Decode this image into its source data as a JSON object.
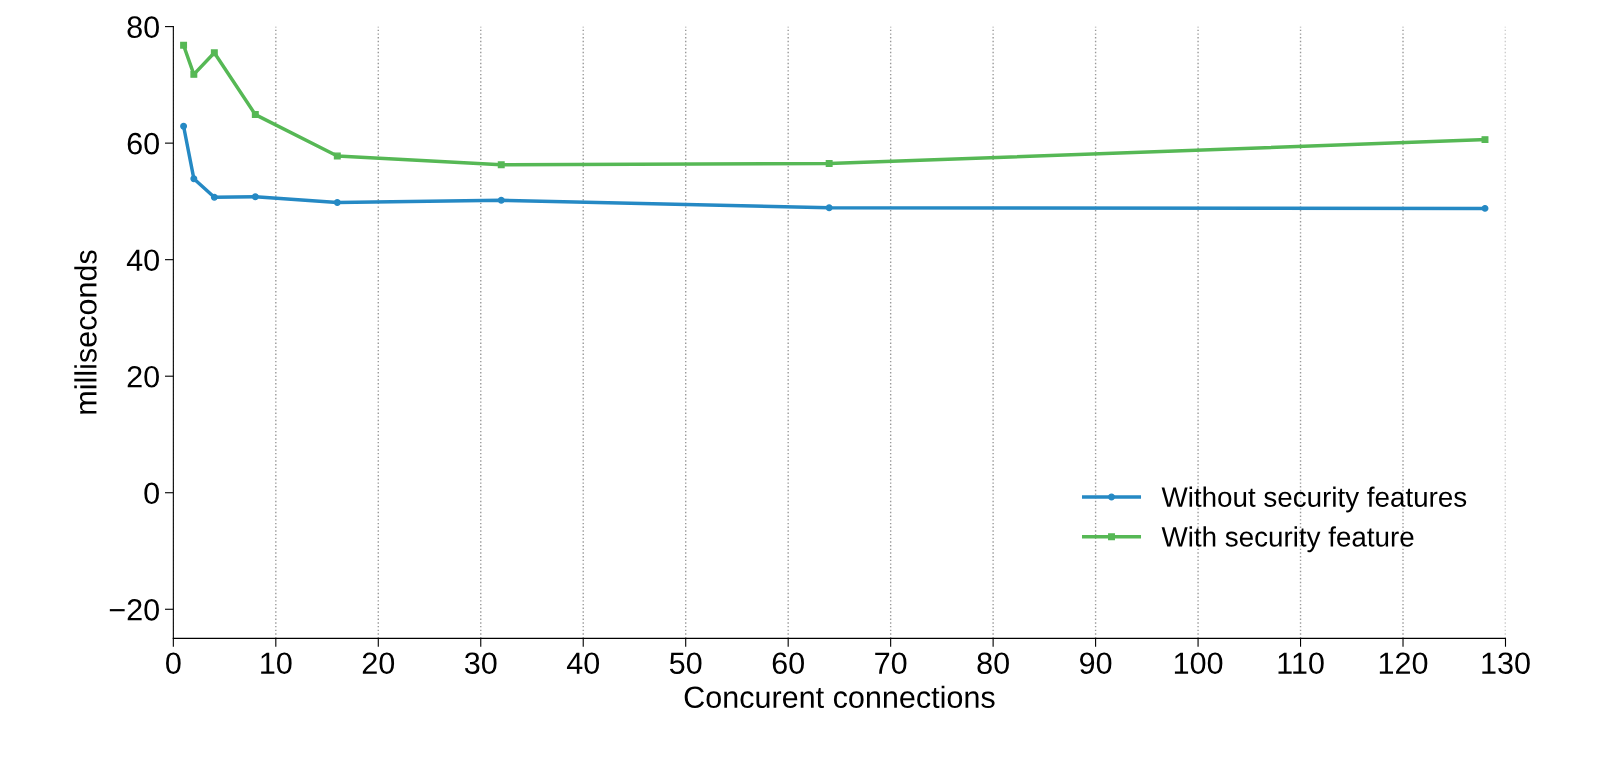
{
  "chart_data": {
    "type": "line",
    "xlabel": "Concurent connections",
    "ylabel": "milliseconds",
    "xlim": [
      0,
      130
    ],
    "xticks": [
      0,
      10,
      20,
      30,
      40,
      50,
      60,
      70,
      80,
      90,
      100,
      110,
      120,
      130
    ],
    "ylim": [
      -25,
      80
    ],
    "yticks": [
      {
        "value": -20,
        "label": "−20"
      },
      0,
      20,
      40,
      60,
      80
    ],
    "grid": "x",
    "legend": "bottom right",
    "line_style": "solid",
    "series": [
      {
        "name": "Without security features",
        "color": "#2589c4",
        "marker": "circle",
        "x": [
          1,
          2,
          4,
          8,
          16,
          32,
          64,
          128
        ],
        "values": [
          62.9,
          53.9,
          50.7,
          50.8,
          49.8,
          50.2,
          48.9,
          48.8
        ]
      },
      {
        "name": "With security feature",
        "color": "#56b855",
        "marker": "square",
        "x": [
          1,
          2,
          4,
          8,
          16,
          32,
          64,
          128
        ],
        "values": [
          76.8,
          71.8,
          75.5,
          64.9,
          57.8,
          56.3,
          56.5,
          60.6
        ]
      }
    ]
  }
}
